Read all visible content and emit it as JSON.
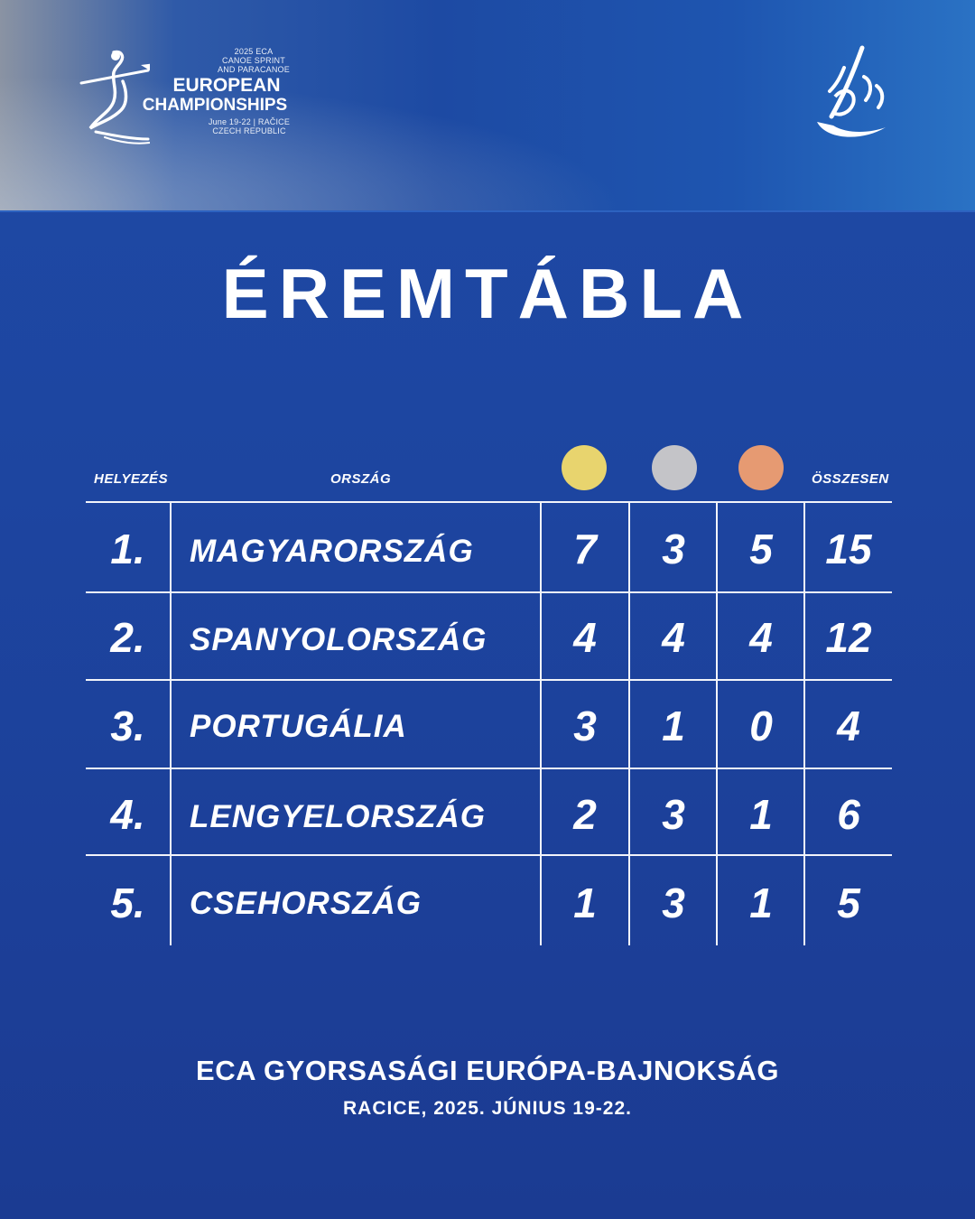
{
  "logo": {
    "line1": "2025 ECA",
    "line2": "CANOE SPRINT",
    "line3": "AND PARACANOE",
    "line4": "EUROPEAN",
    "line5": "CHAMPIONSHIPS",
    "line6": "June 19-22 | RAČICE",
    "line7": "CZECH REPUBLIC"
  },
  "title": "ÉREMTÁBLA",
  "table": {
    "headers": {
      "rank": "HELYEZÉS",
      "country": "ORSZÁG",
      "total": "ÖSSZESEN"
    },
    "medal_colors": {
      "gold": "#e8d46e",
      "silver": "#c4c4c8",
      "bronze": "#e69a72"
    },
    "rows": [
      {
        "rank": "1.",
        "country": "MAGYARORSZÁG",
        "gold": "7",
        "silver": "3",
        "bronze": "5",
        "total": "15"
      },
      {
        "rank": "2.",
        "country": "SPANYOLORSZÁG",
        "gold": "4",
        "silver": "4",
        "bronze": "4",
        "total": "12"
      },
      {
        "rank": "3.",
        "country": "PORTUGÁLIA",
        "gold": "3",
        "silver": "1",
        "bronze": "0",
        "total": "4"
      },
      {
        "rank": "4.",
        "country": "LENGYELORSZÁG",
        "gold": "2",
        "silver": "3",
        "bronze": "1",
        "total": "6"
      },
      {
        "rank": "5.",
        "country": "CSEHORSZÁG",
        "gold": "1",
        "silver": "3",
        "bronze": "1",
        "total": "5"
      }
    ]
  },
  "footer": {
    "line1": "ECA GYORSASÁGI EURÓPA-BAJNOKSÁG",
    "line2": "RACICE, 2025. JÚNIUS 19-22."
  }
}
